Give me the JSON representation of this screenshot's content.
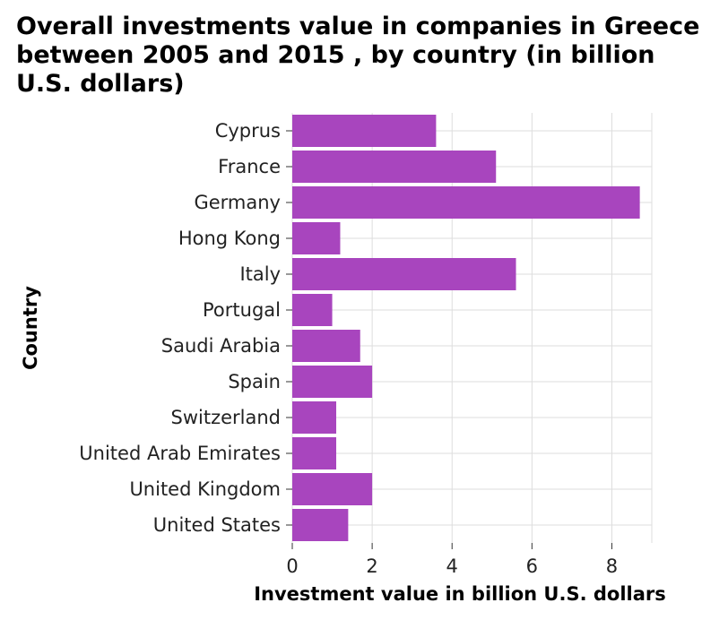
{
  "chart_data": {
    "type": "bar",
    "orientation": "horizontal",
    "title": "Overall investments value in companies in Greece between 2005 and 2015 , by country (in billion U.S. dollars)",
    "xlabel": "Investment value in billion U.S. dollars",
    "ylabel": "Country",
    "categories": [
      "Cyprus",
      "France",
      "Germany",
      "Hong Kong",
      "Italy",
      "Portugal",
      "Saudi Arabia",
      "Spain",
      "Switzerland",
      "United Arab Emirates",
      "United Kingdom",
      "United States"
    ],
    "values": [
      3.6,
      5.1,
      8.7,
      1.2,
      5.6,
      1.0,
      1.7,
      2.0,
      1.1,
      1.1,
      2.0,
      1.4
    ],
    "xlim": [
      0,
      9
    ],
    "xticks": [
      0,
      2,
      4,
      6,
      8
    ],
    "grid": true,
    "bar_color": "#a845be",
    "grid_color": "#dddddd"
  }
}
